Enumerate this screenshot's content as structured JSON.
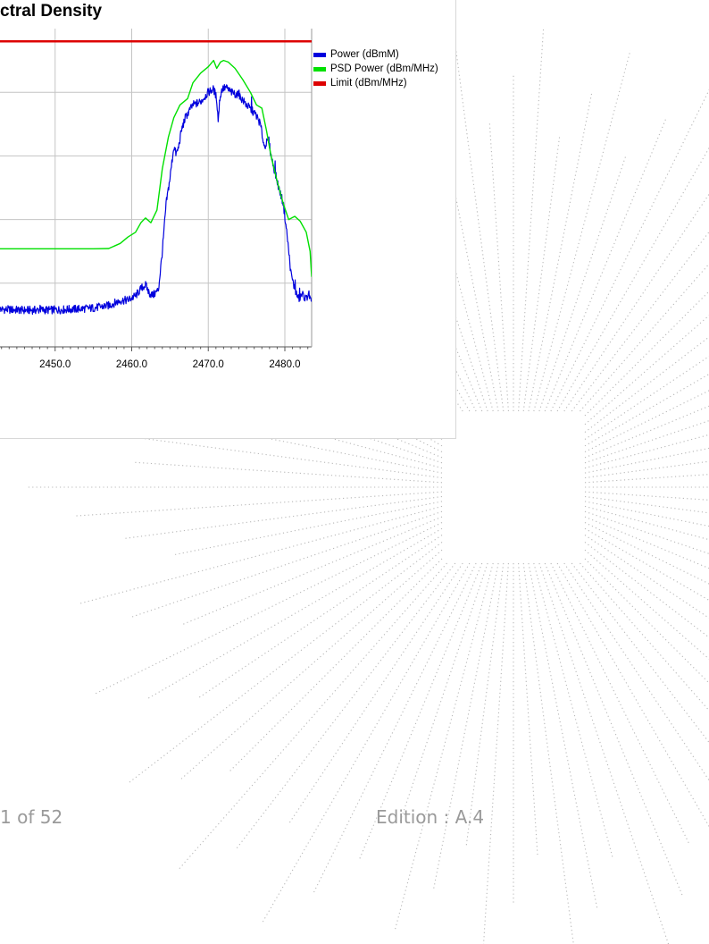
{
  "chart_data": {
    "type": "line",
    "title": "ctral Density",
    "xlabel": "",
    "ylabel": "",
    "x_ticks": [
      "2450.0",
      "2460.0",
      "2470.0",
      "2480.0"
    ],
    "xlim": [
      2442.8,
      2483.5
    ],
    "ylim": [
      0,
      100
    ],
    "grid": true,
    "legend_position": "right",
    "series": [
      {
        "name": "Power (dBmM)",
        "color": "#0000dd",
        "x": [
          2442.8,
          2446,
          2450,
          2453,
          2455,
          2457,
          2458.5,
          2459.5,
          2460.5,
          2461.3,
          2461.8,
          2462.3,
          2462.8,
          2463.5,
          2464,
          2464.5,
          2465,
          2465.5,
          2465.8,
          2466.1,
          2466.5,
          2467,
          2467.5,
          2468,
          2469,
          2470,
          2470.7,
          2471.1,
          2471.3,
          2471.5,
          2471.8,
          2472.3,
          2473,
          2474,
          2475,
          2476.2,
          2476.8,
          2477.3,
          2477.9,
          2478.2,
          2478.6,
          2479.2,
          2479.8,
          2480.3,
          2480.8,
          2481.3,
          2481.8,
          2482.3,
          2482.8,
          2483.1,
          2483.5
        ],
        "y": [
          11.8,
          11.5,
          11.6,
          11.9,
          12.2,
          13.0,
          14.5,
          14.7,
          16.0,
          18.5,
          19.5,
          16.8,
          16.2,
          18.0,
          30.0,
          45.0,
          53.0,
          63.0,
          60.5,
          62.5,
          68.0,
          72.0,
          74.0,
          76.0,
          77.0,
          80.0,
          81.0,
          78.0,
          71.0,
          78.0,
          81.0,
          81.5,
          80.0,
          79.0,
          76.0,
          73.0,
          70.0,
          63.0,
          65.0,
          60.0,
          56.0,
          50.0,
          45.0,
          35.0,
          23.0,
          18.0,
          15.0,
          16.5,
          15.0,
          17.0,
          13.0
        ]
      },
      {
        "name": "PSD Power (dBm/MHz)",
        "color": "#00e000",
        "x": [
          2442.8,
          2450,
          2455,
          2457,
          2458.5,
          2459.5,
          2460.5,
          2461.2,
          2461.8,
          2462.5,
          2463.3,
          2464,
          2464.8,
          2465.5,
          2466.3,
          2467.3,
          2468,
          2469,
          2470,
          2470.7,
          2471.1,
          2471.6,
          2472,
          2472.6,
          2473.5,
          2474.5,
          2475.5,
          2476.3,
          2477,
          2477.6,
          2478.2,
          2479,
          2479.8,
          2480.5,
          2481.3,
          2482,
          2482.8,
          2483.3,
          2483.5
        ],
        "y": [
          30.8,
          30.8,
          30.8,
          30.9,
          32.5,
          34.5,
          36.0,
          39.0,
          40.5,
          39.0,
          43.0,
          56.0,
          66.0,
          72.0,
          76.0,
          78.0,
          83.0,
          86.0,
          88.0,
          90.0,
          87.5,
          89.5,
          90.0,
          89.5,
          87.5,
          84.0,
          80.0,
          76.0,
          75.0,
          68.0,
          60.0,
          52.0,
          45.0,
          40.0,
          41.0,
          39.5,
          36.0,
          30.0,
          22.0
        ]
      },
      {
        "name": "Limit (dBm/MHz)",
        "color": "#dd0000",
        "x": [
          2442.8,
          2483.5
        ],
        "y": [
          96.0,
          96.0
        ]
      }
    ]
  },
  "footer": {
    "page_number": "1 of 52",
    "edition": "Edition : A.4"
  }
}
